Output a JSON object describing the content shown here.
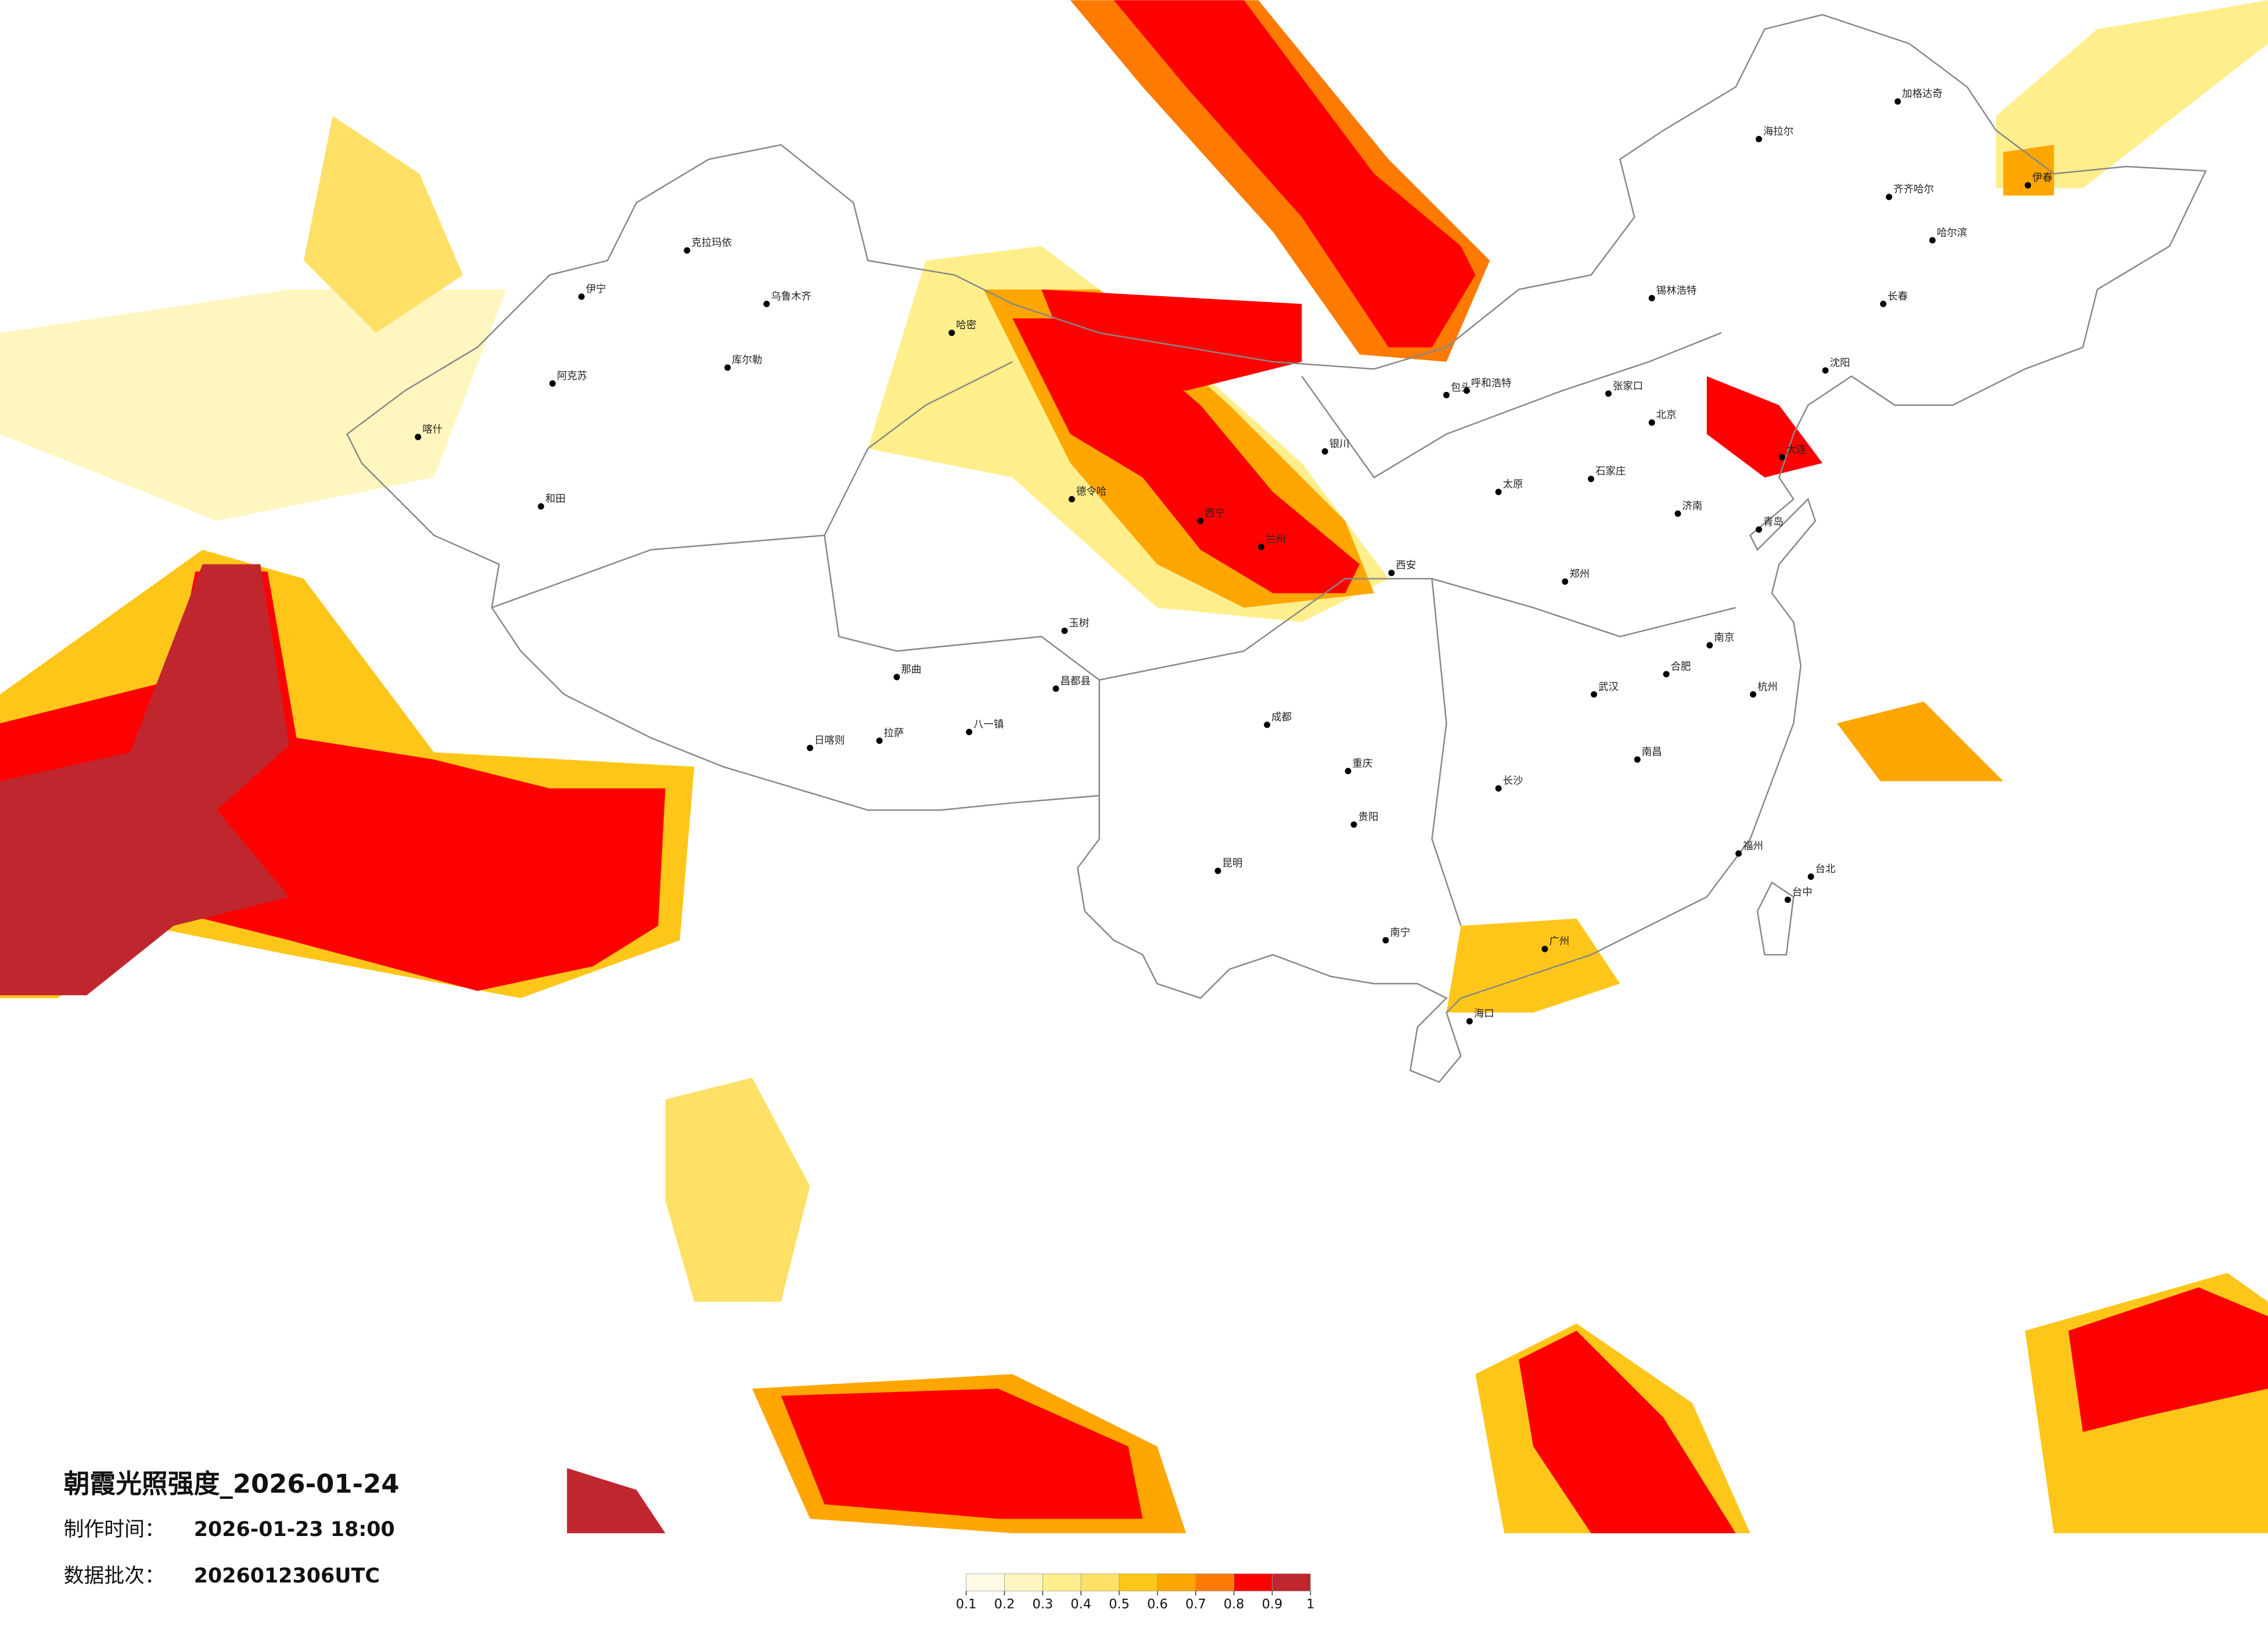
{
  "header": {
    "title": "朝霞光照强度_2026-01-24",
    "made_label": "制作时间：",
    "made_time": "2026-01-23 18:00",
    "batch_label": "数据批次：",
    "batch": "2026012306UTC"
  },
  "legend": {
    "ticks": [
      0.1,
      0.2,
      0.3,
      0.4,
      0.5,
      0.6,
      0.7,
      0.8,
      0.9,
      1
    ],
    "colors": [
      "#fffbe6",
      "#fff6bf",
      "#ffee8c",
      "#ffe066",
      "#ffc61a",
      "#ffa600",
      "#ff7a00",
      "#ff0000",
      "#c0262e"
    ]
  },
  "cities": [
    "乌鲁木齐",
    "克拉玛依",
    "伊宁",
    "阿克苏",
    "和田",
    "喀什",
    "库尔勒",
    "哈密",
    "昌都县",
    "拉萨",
    "日喀则",
    "德令哈",
    "西宁",
    "兰州",
    "银川",
    "呼和浩特",
    "包头",
    "太原",
    "石家庄",
    "济南",
    "郑州",
    "西安",
    "成都",
    "重庆",
    "贵阳",
    "昆明",
    "南宁",
    "海口",
    "长沙",
    "武汉",
    "南昌",
    "福州",
    "台北",
    "杭州",
    "南京",
    "合肥",
    "沈阳",
    "长春",
    "哈尔滨",
    "大连",
    "青岛",
    "伊春",
    "齐齐哈尔",
    "海拉尔",
    "加格达奇",
    "锡林浩特",
    "张家口",
    "八一镇",
    "那曲",
    "玉树",
    "北京",
    "广州",
    "台中"
  ]
}
